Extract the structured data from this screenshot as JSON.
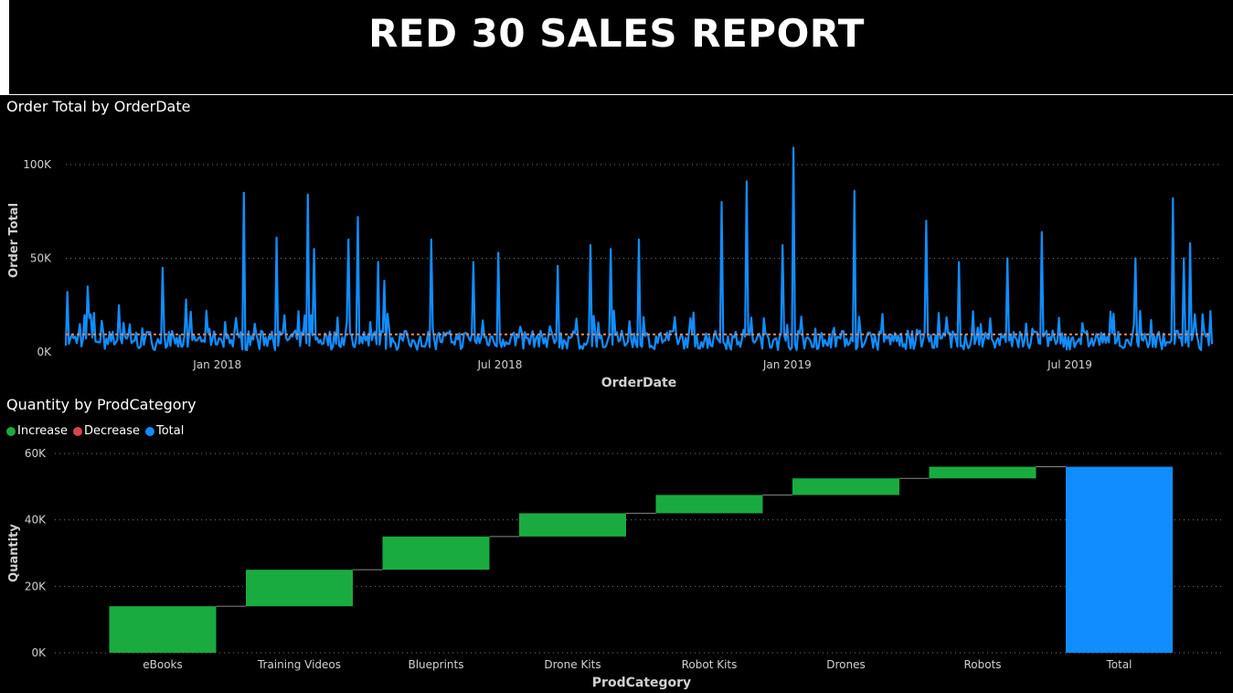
{
  "title": "RED 30 SALES REPORT",
  "colors": {
    "line": "#118DFF",
    "average_line": "#E8845C",
    "increase": "#1AAB40",
    "decrease": "#D64550",
    "total": "#118DFF",
    "gridline": "#777777",
    "axis_text": "#D0D0D0"
  },
  "chart_data": [
    {
      "type": "line",
      "title": "Order Total by OrderDate",
      "xlabel": "OrderDate",
      "ylabel": "Order Total",
      "x_start": "2017-09-26",
      "x_end": "2019-09-30",
      "x_ticks": [
        {
          "label": "Jan 2018",
          "date": "2018-01-01"
        },
        {
          "label": "Jul 2018",
          "date": "2018-07-01"
        },
        {
          "label": "Jan 2019",
          "date": "2019-01-01"
        },
        {
          "label": "Jul 2019",
          "date": "2019-07-01"
        }
      ],
      "y_ticks": [
        {
          "label": "0K",
          "value": 0
        },
        {
          "label": "50K",
          "value": 50000
        },
        {
          "label": "100K",
          "value": 100000
        }
      ],
      "ylim": [
        0,
        100000
      ],
      "grid": true,
      "average_line": 9400,
      "peaks": [
        {
          "date": "2017-09-27",
          "value": 32000
        },
        {
          "date": "2017-10-05",
          "value": 15000
        },
        {
          "date": "2017-10-10",
          "value": 35000
        },
        {
          "date": "2017-10-12",
          "value": 20000
        },
        {
          "date": "2017-10-30",
          "value": 25000
        },
        {
          "date": "2017-11-27",
          "value": 45000
        },
        {
          "date": "2017-12-12",
          "value": 28000
        },
        {
          "date": "2018-01-06",
          "value": 16000
        },
        {
          "date": "2018-01-18",
          "value": 85000
        },
        {
          "date": "2018-02-08",
          "value": 61000
        },
        {
          "date": "2018-02-28",
          "value": 84000
        },
        {
          "date": "2018-03-04",
          "value": 55000
        },
        {
          "date": "2018-03-26",
          "value": 60000
        },
        {
          "date": "2018-04-01",
          "value": 72000
        },
        {
          "date": "2018-04-14",
          "value": 48000
        },
        {
          "date": "2018-04-18",
          "value": 38000
        },
        {
          "date": "2018-05-18",
          "value": 60000
        },
        {
          "date": "2018-06-14",
          "value": 48000
        },
        {
          "date": "2018-06-30",
          "value": 53000
        },
        {
          "date": "2018-08-07",
          "value": 46000
        },
        {
          "date": "2018-08-28",
          "value": 57000
        },
        {
          "date": "2018-09-10",
          "value": 55000
        },
        {
          "date": "2018-09-28",
          "value": 60000
        },
        {
          "date": "2018-11-20",
          "value": 80000
        },
        {
          "date": "2018-12-06",
          "value": 91000
        },
        {
          "date": "2018-12-29",
          "value": 57000
        },
        {
          "date": "2019-01-05",
          "value": 109000
        },
        {
          "date": "2019-02-13",
          "value": 86000
        },
        {
          "date": "2019-03-31",
          "value": 70000
        },
        {
          "date": "2019-04-21",
          "value": 48000
        },
        {
          "date": "2019-05-22",
          "value": 50000
        },
        {
          "date": "2019-06-13",
          "value": 64000
        },
        {
          "date": "2019-08-12",
          "value": 50000
        },
        {
          "date": "2019-09-05",
          "value": 82000
        },
        {
          "date": "2019-09-12",
          "value": 50000
        },
        {
          "date": "2019-09-16",
          "value": 58000
        }
      ]
    },
    {
      "type": "waterfall",
      "title": "Quantity by ProdCategory",
      "xlabel": "ProdCategory",
      "ylabel": "Quantity",
      "legend": [
        "Increase",
        "Decrease",
        "Total"
      ],
      "legend_position": "top-left",
      "ylim": [
        0,
        60000
      ],
      "y_ticks": [
        {
          "label": "0K",
          "value": 0
        },
        {
          "label": "20K",
          "value": 20000
        },
        {
          "label": "40K",
          "value": 40000
        },
        {
          "label": "60K",
          "value": 60000
        }
      ],
      "grid": true,
      "categories": [
        "eBooks",
        "Training Videos",
        "Blueprints",
        "Drone Kits",
        "Robot Kits",
        "Drones",
        "Robots",
        "Total"
      ],
      "values": [
        14000,
        11000,
        10000,
        7000,
        5500,
        5000,
        3500,
        56000
      ]
    }
  ]
}
